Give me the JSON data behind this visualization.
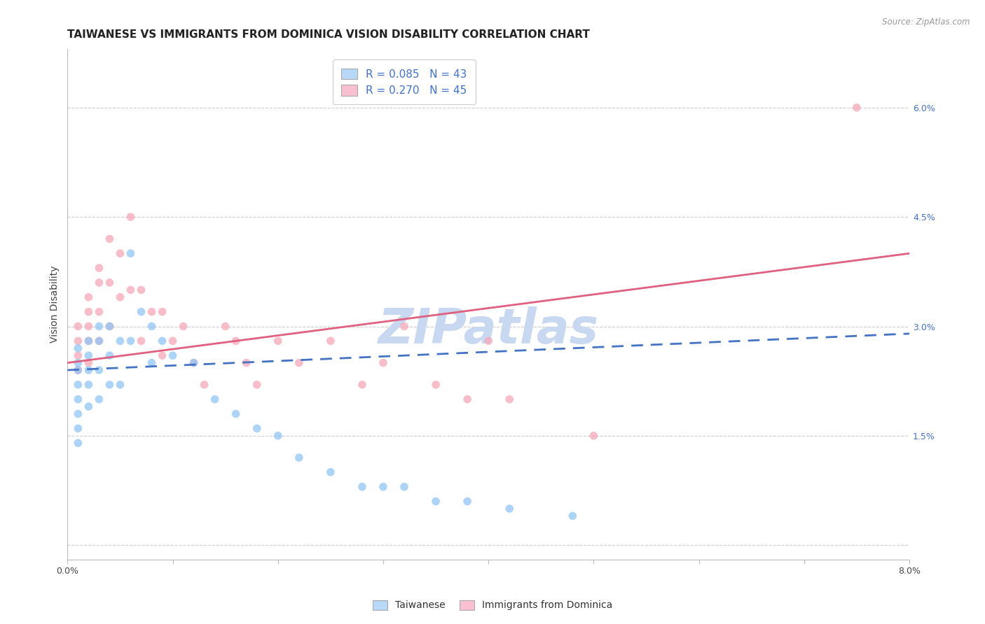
{
  "title": "TAIWANESE VS IMMIGRANTS FROM DOMINICA VISION DISABILITY CORRELATION CHART",
  "source": "Source: ZipAtlas.com",
  "ylabel": "Vision Disability",
  "xmin": 0.0,
  "xmax": 0.08,
  "ymin": -0.002,
  "ymax": 0.068,
  "yticks": [
    0.0,
    0.015,
    0.03,
    0.045,
    0.06
  ],
  "ytick_labels": [
    "",
    "1.5%",
    "3.0%",
    "4.5%",
    "6.0%"
  ],
  "grid_color": "#cccccc",
  "background_color": "#ffffff",
  "taiwanese_color": "#92c5f5",
  "dominica_color": "#f5a8b8",
  "tw_line_color": "#4472c4",
  "dom_line_color": "#e06080",
  "legend_box_color_taiwanese": "#b8d8f8",
  "legend_box_color_dominica": "#f8c0d0",
  "watermark": "ZIPatlas",
  "watermark_color": "#c8d8f0",
  "marker_size": 70,
  "title_fontsize": 11,
  "axis_fontsize": 10,
  "tick_fontsize": 9,
  "right_tick_color": "#4472c4",
  "tw_R": 0.085,
  "tw_N": 43,
  "dom_R": 0.27,
  "dom_N": 45,
  "tw_label": "Taiwanese",
  "dom_label": "Immigrants from Dominica",
  "tw_x": [
    0.001,
    0.001,
    0.001,
    0.001,
    0.001,
    0.001,
    0.001,
    0.001,
    0.002,
    0.002,
    0.002,
    0.002,
    0.002,
    0.003,
    0.003,
    0.003,
    0.003,
    0.004,
    0.004,
    0.004,
    0.005,
    0.005,
    0.006,
    0.006,
    0.007,
    0.008,
    0.008,
    0.009,
    0.01,
    0.012,
    0.014,
    0.016,
    0.018,
    0.02,
    0.022,
    0.025,
    0.028,
    0.03,
    0.032,
    0.035,
    0.038,
    0.042,
    0.048
  ],
  "tw_y": [
    0.027,
    0.025,
    0.024,
    0.022,
    0.02,
    0.018,
    0.016,
    0.014,
    0.028,
    0.026,
    0.024,
    0.022,
    0.019,
    0.03,
    0.028,
    0.024,
    0.02,
    0.03,
    0.026,
    0.022,
    0.028,
    0.022,
    0.04,
    0.028,
    0.032,
    0.03,
    0.025,
    0.028,
    0.026,
    0.025,
    0.02,
    0.018,
    0.016,
    0.015,
    0.012,
    0.01,
    0.008,
    0.008,
    0.008,
    0.006,
    0.006,
    0.005,
    0.004
  ],
  "dom_x": [
    0.001,
    0.001,
    0.001,
    0.001,
    0.002,
    0.002,
    0.002,
    0.002,
    0.002,
    0.003,
    0.003,
    0.003,
    0.003,
    0.004,
    0.004,
    0.004,
    0.005,
    0.005,
    0.006,
    0.006,
    0.007,
    0.007,
    0.008,
    0.009,
    0.009,
    0.01,
    0.011,
    0.012,
    0.013,
    0.015,
    0.016,
    0.017,
    0.018,
    0.02,
    0.022,
    0.025,
    0.028,
    0.03,
    0.032,
    0.035,
    0.038,
    0.04,
    0.042,
    0.05,
    0.075
  ],
  "dom_y": [
    0.03,
    0.028,
    0.026,
    0.024,
    0.034,
    0.032,
    0.03,
    0.028,
    0.025,
    0.038,
    0.036,
    0.032,
    0.028,
    0.042,
    0.036,
    0.03,
    0.04,
    0.034,
    0.045,
    0.035,
    0.035,
    0.028,
    0.032,
    0.032,
    0.026,
    0.028,
    0.03,
    0.025,
    0.022,
    0.03,
    0.028,
    0.025,
    0.022,
    0.028,
    0.025,
    0.028,
    0.022,
    0.025,
    0.03,
    0.022,
    0.02,
    0.028,
    0.02,
    0.015,
    0.06
  ],
  "tw_line_x": [
    0.0,
    0.08
  ],
  "tw_line_y": [
    0.024,
    0.029
  ],
  "dom_line_x": [
    0.0,
    0.08
  ],
  "dom_line_y": [
    0.025,
    0.04
  ]
}
